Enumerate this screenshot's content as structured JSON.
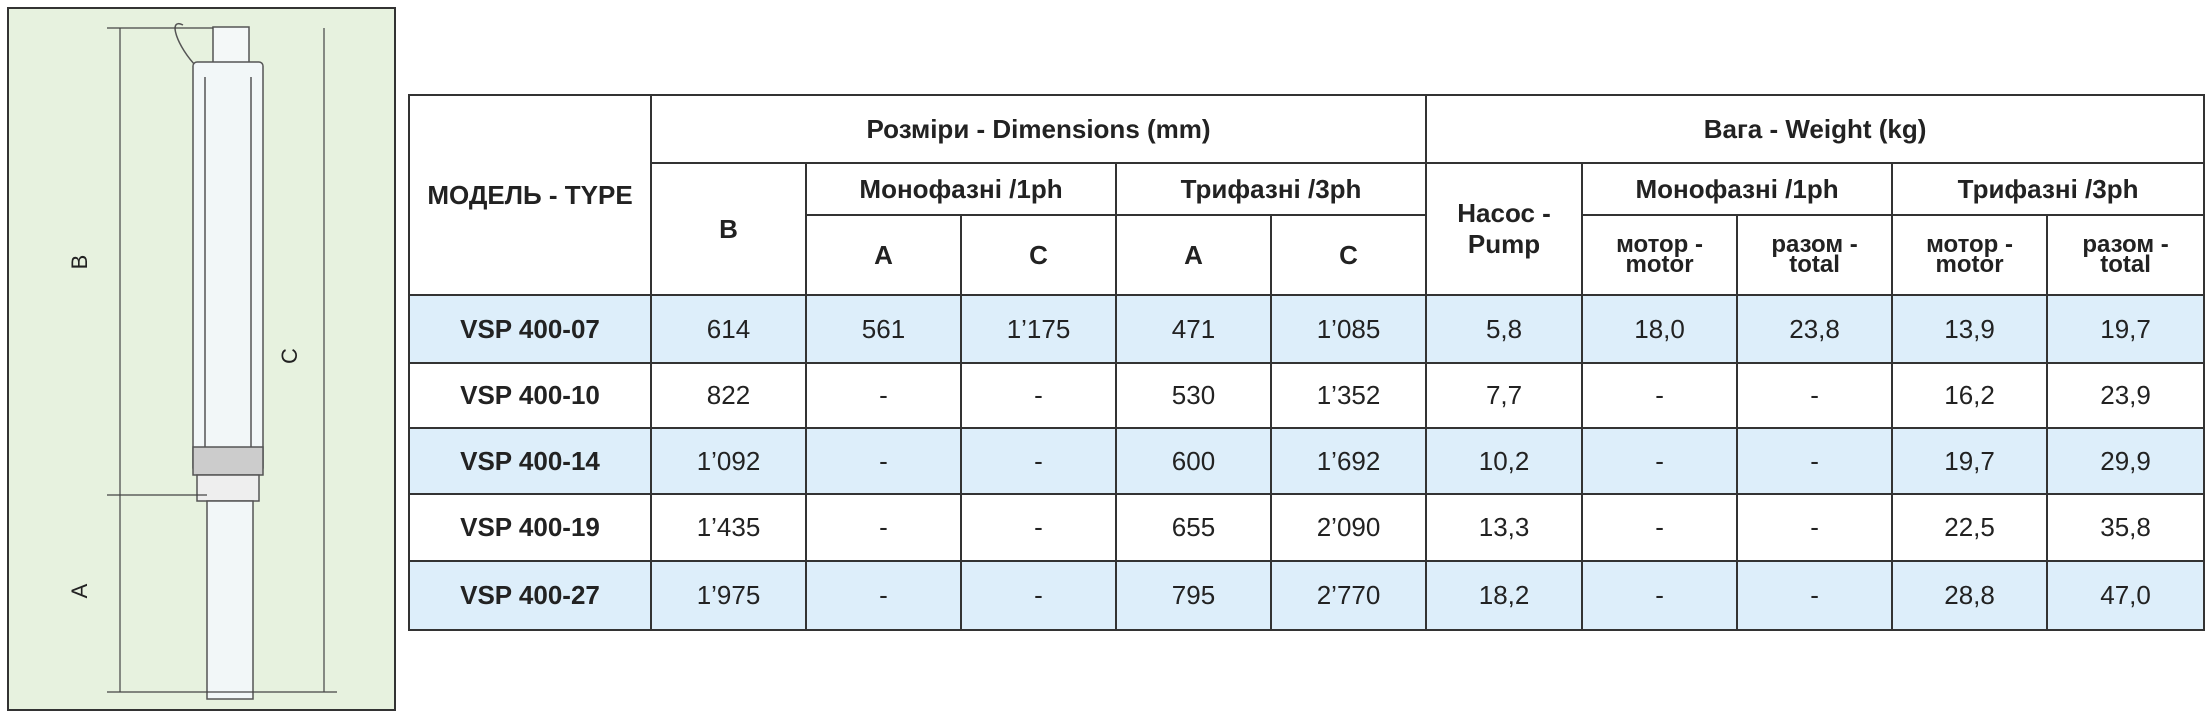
{
  "diagram": {
    "labels": [
      "B",
      "C",
      "A"
    ]
  },
  "table": {
    "header": {
      "model": "МОДЕЛЬ - TYPE",
      "dimensions": "Розміри - Dimensions (mm)",
      "weight": "Вага - Weight (kg)",
      "b": "B",
      "dim_1ph": "Монофазні /1ph",
      "dim_3ph": "Трифазні /3ph",
      "dim_1ph_a": "A",
      "dim_1ph_c": "C",
      "dim_3ph_a": "A",
      "dim_3ph_c": "C",
      "pump": "Насос - Pump",
      "w_1ph": "Монофазні /1ph",
      "w_3ph": "Трифазні /3ph",
      "w_1ph_motor": "мотор - motor",
      "w_1ph_total": "разом - total",
      "w_3ph_motor": "мотор - motor",
      "w_3ph_total": "разом - total"
    },
    "rows": [
      [
        "VSP 400-07",
        "614",
        "561",
        "1’175",
        "471",
        "1’085",
        "5,8",
        "18,0",
        "23,8",
        "13,9",
        "19,7"
      ],
      [
        "VSP 400-10",
        "822",
        "-",
        "-",
        "530",
        "1’352",
        "7,7",
        "-",
        "-",
        "16,2",
        "23,9"
      ],
      [
        "VSP 400-14",
        "1’092",
        "-",
        "-",
        "600",
        "1’692",
        "10,2",
        "-",
        "-",
        "19,7",
        "29,9"
      ],
      [
        "VSP 400-19",
        "1’435",
        "-",
        "-",
        "655",
        "2’090",
        "13,3",
        "-",
        "-",
        "22,5",
        "35,8"
      ],
      [
        "VSP 400-27",
        "1’975",
        "-",
        "-",
        "795",
        "2’770",
        "18,2",
        "-",
        "-",
        "28,8",
        "47,0"
      ]
    ]
  }
}
